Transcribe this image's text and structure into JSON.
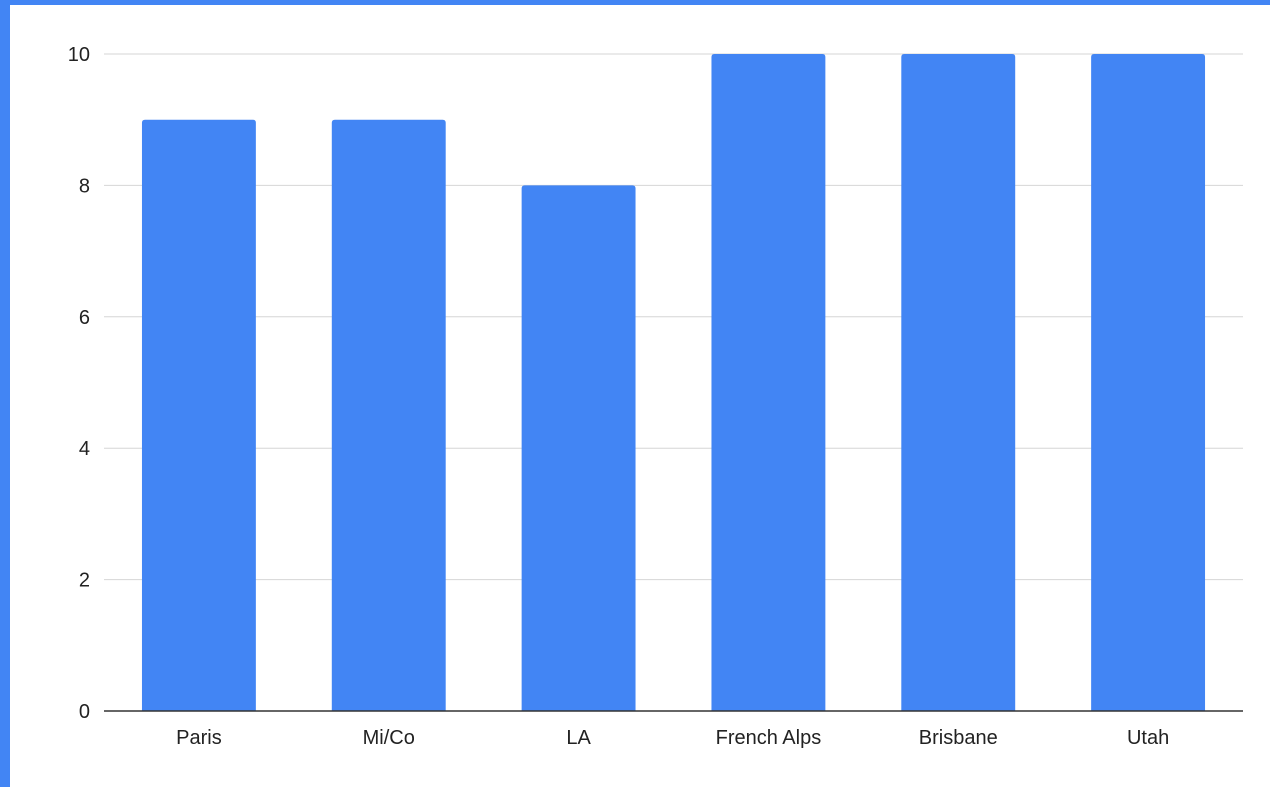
{
  "chart_data": {
    "type": "bar",
    "title": "",
    "xlabel": "",
    "ylabel": "",
    "categories": [
      "Paris",
      "Mi/Co",
      "LA",
      "French Alps",
      "Brisbane",
      "Utah"
    ],
    "values": [
      9,
      9,
      8,
      10,
      10,
      10
    ],
    "ylim": [
      0,
      10
    ],
    "yticks": [
      0,
      2,
      4,
      6,
      8,
      10
    ],
    "grid": true,
    "legend": "none",
    "bar_color": "#4285f4",
    "frame_color": "#4285f4"
  }
}
